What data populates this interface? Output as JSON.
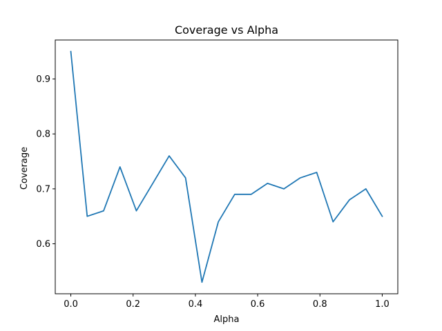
{
  "chart_data": {
    "type": "line",
    "title": "Coverage vs Alpha",
    "xlabel": "Alpha",
    "ylabel": "Coverage",
    "xlim": [
      -0.05,
      1.05
    ],
    "ylim": [
      0.509,
      0.971
    ],
    "xticks": [
      0.0,
      0.2,
      0.4,
      0.6,
      0.8,
      1.0
    ],
    "xtick_labels": [
      "0.0",
      "0.2",
      "0.4",
      "0.6",
      "0.8",
      "1.0"
    ],
    "yticks": [
      0.6,
      0.7,
      0.8,
      0.9
    ],
    "ytick_labels": [
      "0.6",
      "0.7",
      "0.8",
      "0.9"
    ],
    "grid": false,
    "legend": null,
    "series": [
      {
        "color": "#1f77b4",
        "x": [
          0.0,
          0.0526,
          0.1053,
          0.1579,
          0.2105,
          0.2632,
          0.3158,
          0.3684,
          0.4211,
          0.4737,
          0.5263,
          0.5789,
          0.6316,
          0.6842,
          0.7368,
          0.7895,
          0.8421,
          0.8947,
          0.9474,
          1.0
        ],
        "y": [
          0.95,
          0.65,
          0.66,
          0.74,
          0.66,
          0.71,
          0.76,
          0.72,
          0.53,
          0.64,
          0.69,
          0.69,
          0.71,
          0.7,
          0.72,
          0.73,
          0.64,
          0.68,
          0.7,
          0.65
        ]
      }
    ]
  }
}
